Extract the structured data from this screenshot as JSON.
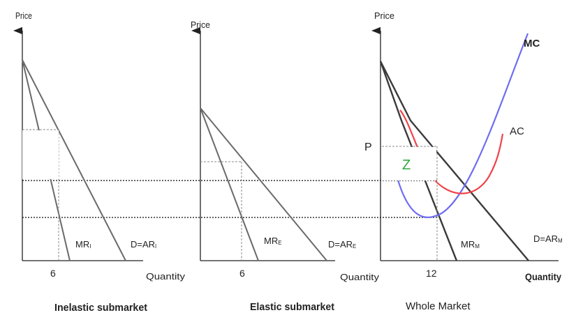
{
  "panels": {
    "inelastic": {
      "title": "Inelastic submarket",
      "y_label": "Price",
      "x_label": "Quantity",
      "quantity_tick": "6",
      "mr_label": "MR",
      "mr_sub": "I",
      "d_label": "D=AR",
      "d_sub": "I"
    },
    "elastic": {
      "title": "Elastic submarket",
      "y_label": "Price",
      "x_label": "Quantity",
      "quantity_tick": "6",
      "mr_label": "MR",
      "mr_sub": "E",
      "d_label": "D=AR",
      "d_sub": "E"
    },
    "whole": {
      "title": "Whole Market",
      "y_label": "Price",
      "x_label": "Quantity",
      "quantity_tick": "12",
      "price_label": "P",
      "area_label": "Z",
      "mc_label": "MC",
      "ac_label": "AC",
      "mr_label": "MR",
      "mr_sub": "M",
      "d_label": "D=AR",
      "d_sub": "M"
    }
  },
  "colors": {
    "mc_curve": "#6f6cf2",
    "ac_curve": "#f0434a",
    "area_label": "#2eaa3a"
  }
}
